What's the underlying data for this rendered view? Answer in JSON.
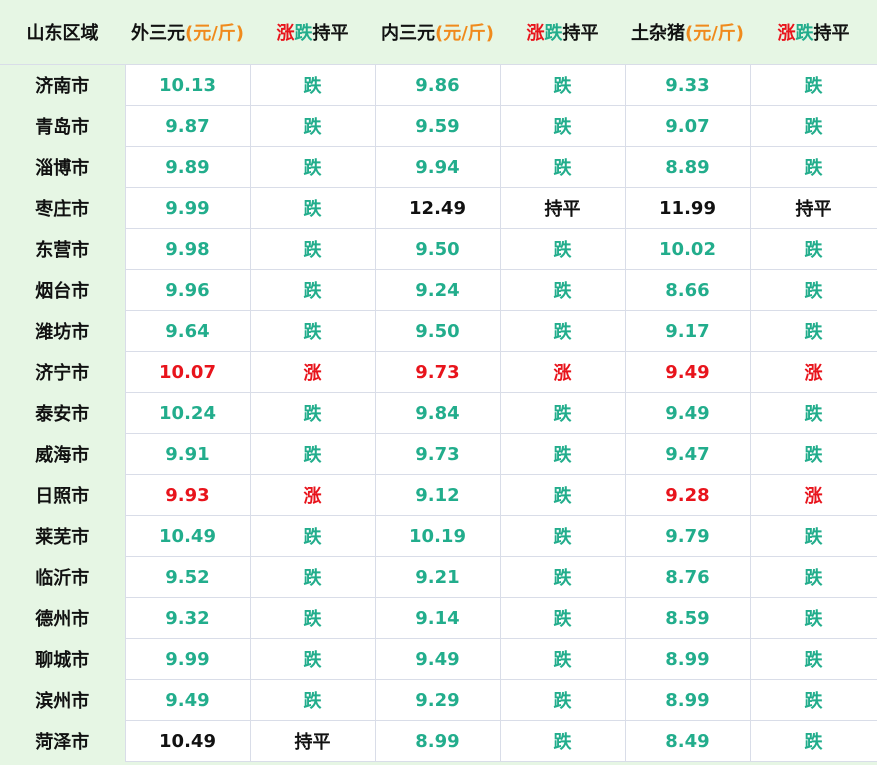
{
  "header": {
    "region": "山东区域",
    "col1": {
      "name": "外三元",
      "unit": "(元/斤)"
    },
    "trend1": {
      "up": "涨",
      "down": "跌",
      "flat": "持平"
    },
    "col2": {
      "name": "内三元",
      "unit": "(元/斤)"
    },
    "trend2": {
      "up": "涨",
      "down": "跌",
      "flat": "持平"
    },
    "col3": {
      "name": "土杂猪",
      "unit": "(元/斤)"
    },
    "trend3": {
      "up": "涨",
      "down": "跌",
      "flat": "持平"
    }
  },
  "colors": {
    "up": "#e8141c",
    "down": "#22ad8c",
    "flat": "#111111",
    "unit": "#f08a1c",
    "region_bg": "#e6f6e4"
  },
  "rows": [
    {
      "city": "济南市",
      "v1": "10.13",
      "t1": "跌",
      "v2": "9.86",
      "t2": "跌",
      "v3": "9.33",
      "t3": "跌"
    },
    {
      "city": "青岛市",
      "v1": "9.87",
      "t1": "跌",
      "v2": "9.59",
      "t2": "跌",
      "v3": "9.07",
      "t3": "跌"
    },
    {
      "city": "淄博市",
      "v1": "9.89",
      "t1": "跌",
      "v2": "9.94",
      "t2": "跌",
      "v3": "8.89",
      "t3": "跌"
    },
    {
      "city": "枣庄市",
      "v1": "9.99",
      "t1": "跌",
      "v2": "12.49",
      "t2": "持平",
      "v3": "11.99",
      "t3": "持平"
    },
    {
      "city": "东营市",
      "v1": "9.98",
      "t1": "跌",
      "v2": "9.50",
      "t2": "跌",
      "v3": "10.02",
      "t3": "跌"
    },
    {
      "city": "烟台市",
      "v1": "9.96",
      "t1": "跌",
      "v2": "9.24",
      "t2": "跌",
      "v3": "8.66",
      "t3": "跌"
    },
    {
      "city": "潍坊市",
      "v1": "9.64",
      "t1": "跌",
      "v2": "9.50",
      "t2": "跌",
      "v3": "9.17",
      "t3": "跌"
    },
    {
      "city": "济宁市",
      "v1": "10.07",
      "t1": "涨",
      "v2": "9.73",
      "t2": "涨",
      "v3": "9.49",
      "t3": "涨"
    },
    {
      "city": "泰安市",
      "v1": "10.24",
      "t1": "跌",
      "v2": "9.84",
      "t2": "跌",
      "v3": "9.49",
      "t3": "跌"
    },
    {
      "city": "威海市",
      "v1": "9.91",
      "t1": "跌",
      "v2": "9.73",
      "t2": "跌",
      "v3": "9.47",
      "t3": "跌"
    },
    {
      "city": "日照市",
      "v1": "9.93",
      "t1": "涨",
      "v2": "9.12",
      "t2": "跌",
      "v3": "9.28",
      "t3": "涨"
    },
    {
      "city": "莱芜市",
      "v1": "10.49",
      "t1": "跌",
      "v2": "10.19",
      "t2": "跌",
      "v3": "9.79",
      "t3": "跌"
    },
    {
      "city": "临沂市",
      "v1": "9.52",
      "t1": "跌",
      "v2": "9.21",
      "t2": "跌",
      "v3": "8.76",
      "t3": "跌"
    },
    {
      "city": "德州市",
      "v1": "9.32",
      "t1": "跌",
      "v2": "9.14",
      "t2": "跌",
      "v3": "8.59",
      "t3": "跌"
    },
    {
      "city": "聊城市",
      "v1": "9.99",
      "t1": "跌",
      "v2": "9.49",
      "t2": "跌",
      "v3": "8.99",
      "t3": "跌"
    },
    {
      "city": "滨州市",
      "v1": "9.49",
      "t1": "跌",
      "v2": "9.29",
      "t2": "跌",
      "v3": "8.99",
      "t3": "跌"
    },
    {
      "city": "菏泽市",
      "v1": "10.49",
      "t1": "持平",
      "v2": "8.99",
      "t2": "跌",
      "v3": "8.49",
      "t3": "跌"
    }
  ]
}
